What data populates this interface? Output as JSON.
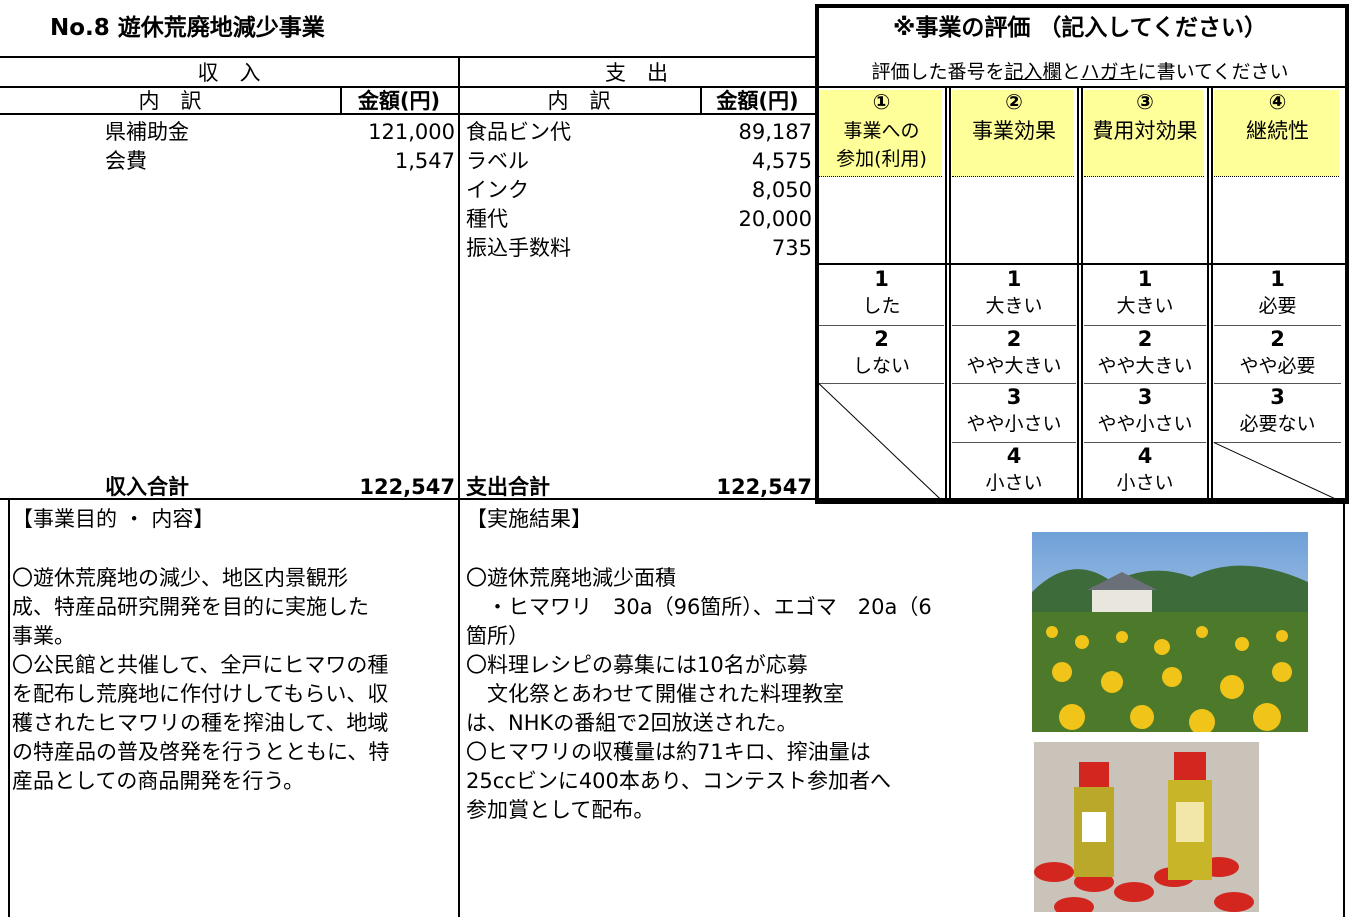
{
  "title": "No.8 遊休荒廃地減少事業",
  "income": {
    "header": "収　入",
    "col_item": "内　訳",
    "col_amount": "金額(円)",
    "rows": [
      [
        "県補助金",
        "121,000"
      ],
      [
        "会費",
        "1,547"
      ]
    ],
    "total_label": "収入合計",
    "total": "122,547"
  },
  "expense": {
    "header": "支　出",
    "col_item": "内　訳",
    "col_amount": "金額(円)",
    "rows": [
      [
        "食品ビン代",
        "89,187"
      ],
      [
        "ラベル",
        "4,575"
      ],
      [
        "インク",
        "8,050"
      ],
      [
        "種代",
        "20,000"
      ],
      [
        "振込手数料",
        "735"
      ]
    ],
    "total_label": "支出合計",
    "total": "122,547"
  },
  "evaluation": {
    "title": "※事業の評価 （記入してください）",
    "instruction": {
      "before": "評価した番号を",
      "field": "記入欄",
      "and": "と",
      "card": "ハガキ",
      "after": "に書いてください"
    },
    "columns": [
      {
        "number": "①",
        "label": [
          "事業への",
          "参加(利用)"
        ],
        "options": [
          {
            "number": "1",
            "label": "した"
          },
          {
            "number": "2",
            "label": "しない"
          }
        ]
      },
      {
        "number": "②",
        "label": [
          "事業効果"
        ],
        "options": [
          {
            "number": "1",
            "label": "大きい"
          },
          {
            "number": "2",
            "label": "やや大きい"
          },
          {
            "number": "3",
            "label": "やや小さい"
          },
          {
            "number": "4",
            "label": "小さい"
          }
        ]
      },
      {
        "number": "③",
        "label": [
          "費用対効果"
        ],
        "options": [
          {
            "number": "1",
            "label": "大きい"
          },
          {
            "number": "2",
            "label": "やや大きい"
          },
          {
            "number": "3",
            "label": "やや小さい"
          },
          {
            "number": "4",
            "label": "小さい"
          }
        ]
      },
      {
        "number": "④",
        "label": [
          "継続性"
        ],
        "options": [
          {
            "number": "1",
            "label": "必要"
          },
          {
            "number": "2",
            "label": "やや必要"
          },
          {
            "number": "3",
            "label": "必要ない"
          }
        ]
      }
    ]
  },
  "purpose": {
    "heading": "【事業目的 ・ 内容】",
    "lines": [
      "〇遊休荒廃地の減少、地区内景観形",
      "成、特産品研究開発を目的に実施した",
      "事業。",
      "〇公民館と共催して、全戸にヒマワの種",
      "を配布し荒廃地に作付けしてもらい、収",
      "穫されたヒマワリの種を搾油して、地域",
      "の特産品の普及啓発を行うとともに、特",
      "産品としての商品開発を行う。"
    ]
  },
  "results": {
    "heading": "【実施結果】",
    "lines": [
      "〇遊休荒廃地減少面積",
      "　・ヒマワリ　30a（96箇所）、エゴマ　20a（6",
      "箇所）",
      "〇料理レシピの募集には10名が応募",
      "　文化祭とあわせて開催された料理教室",
      "は、NHKの番組で2回放送された。",
      "〇ヒマワリの収穫量は約71キロ、搾油量は",
      "25ccビンに400本あり、コンテスト参加者へ",
      "参加賞として配布。"
    ]
  }
}
